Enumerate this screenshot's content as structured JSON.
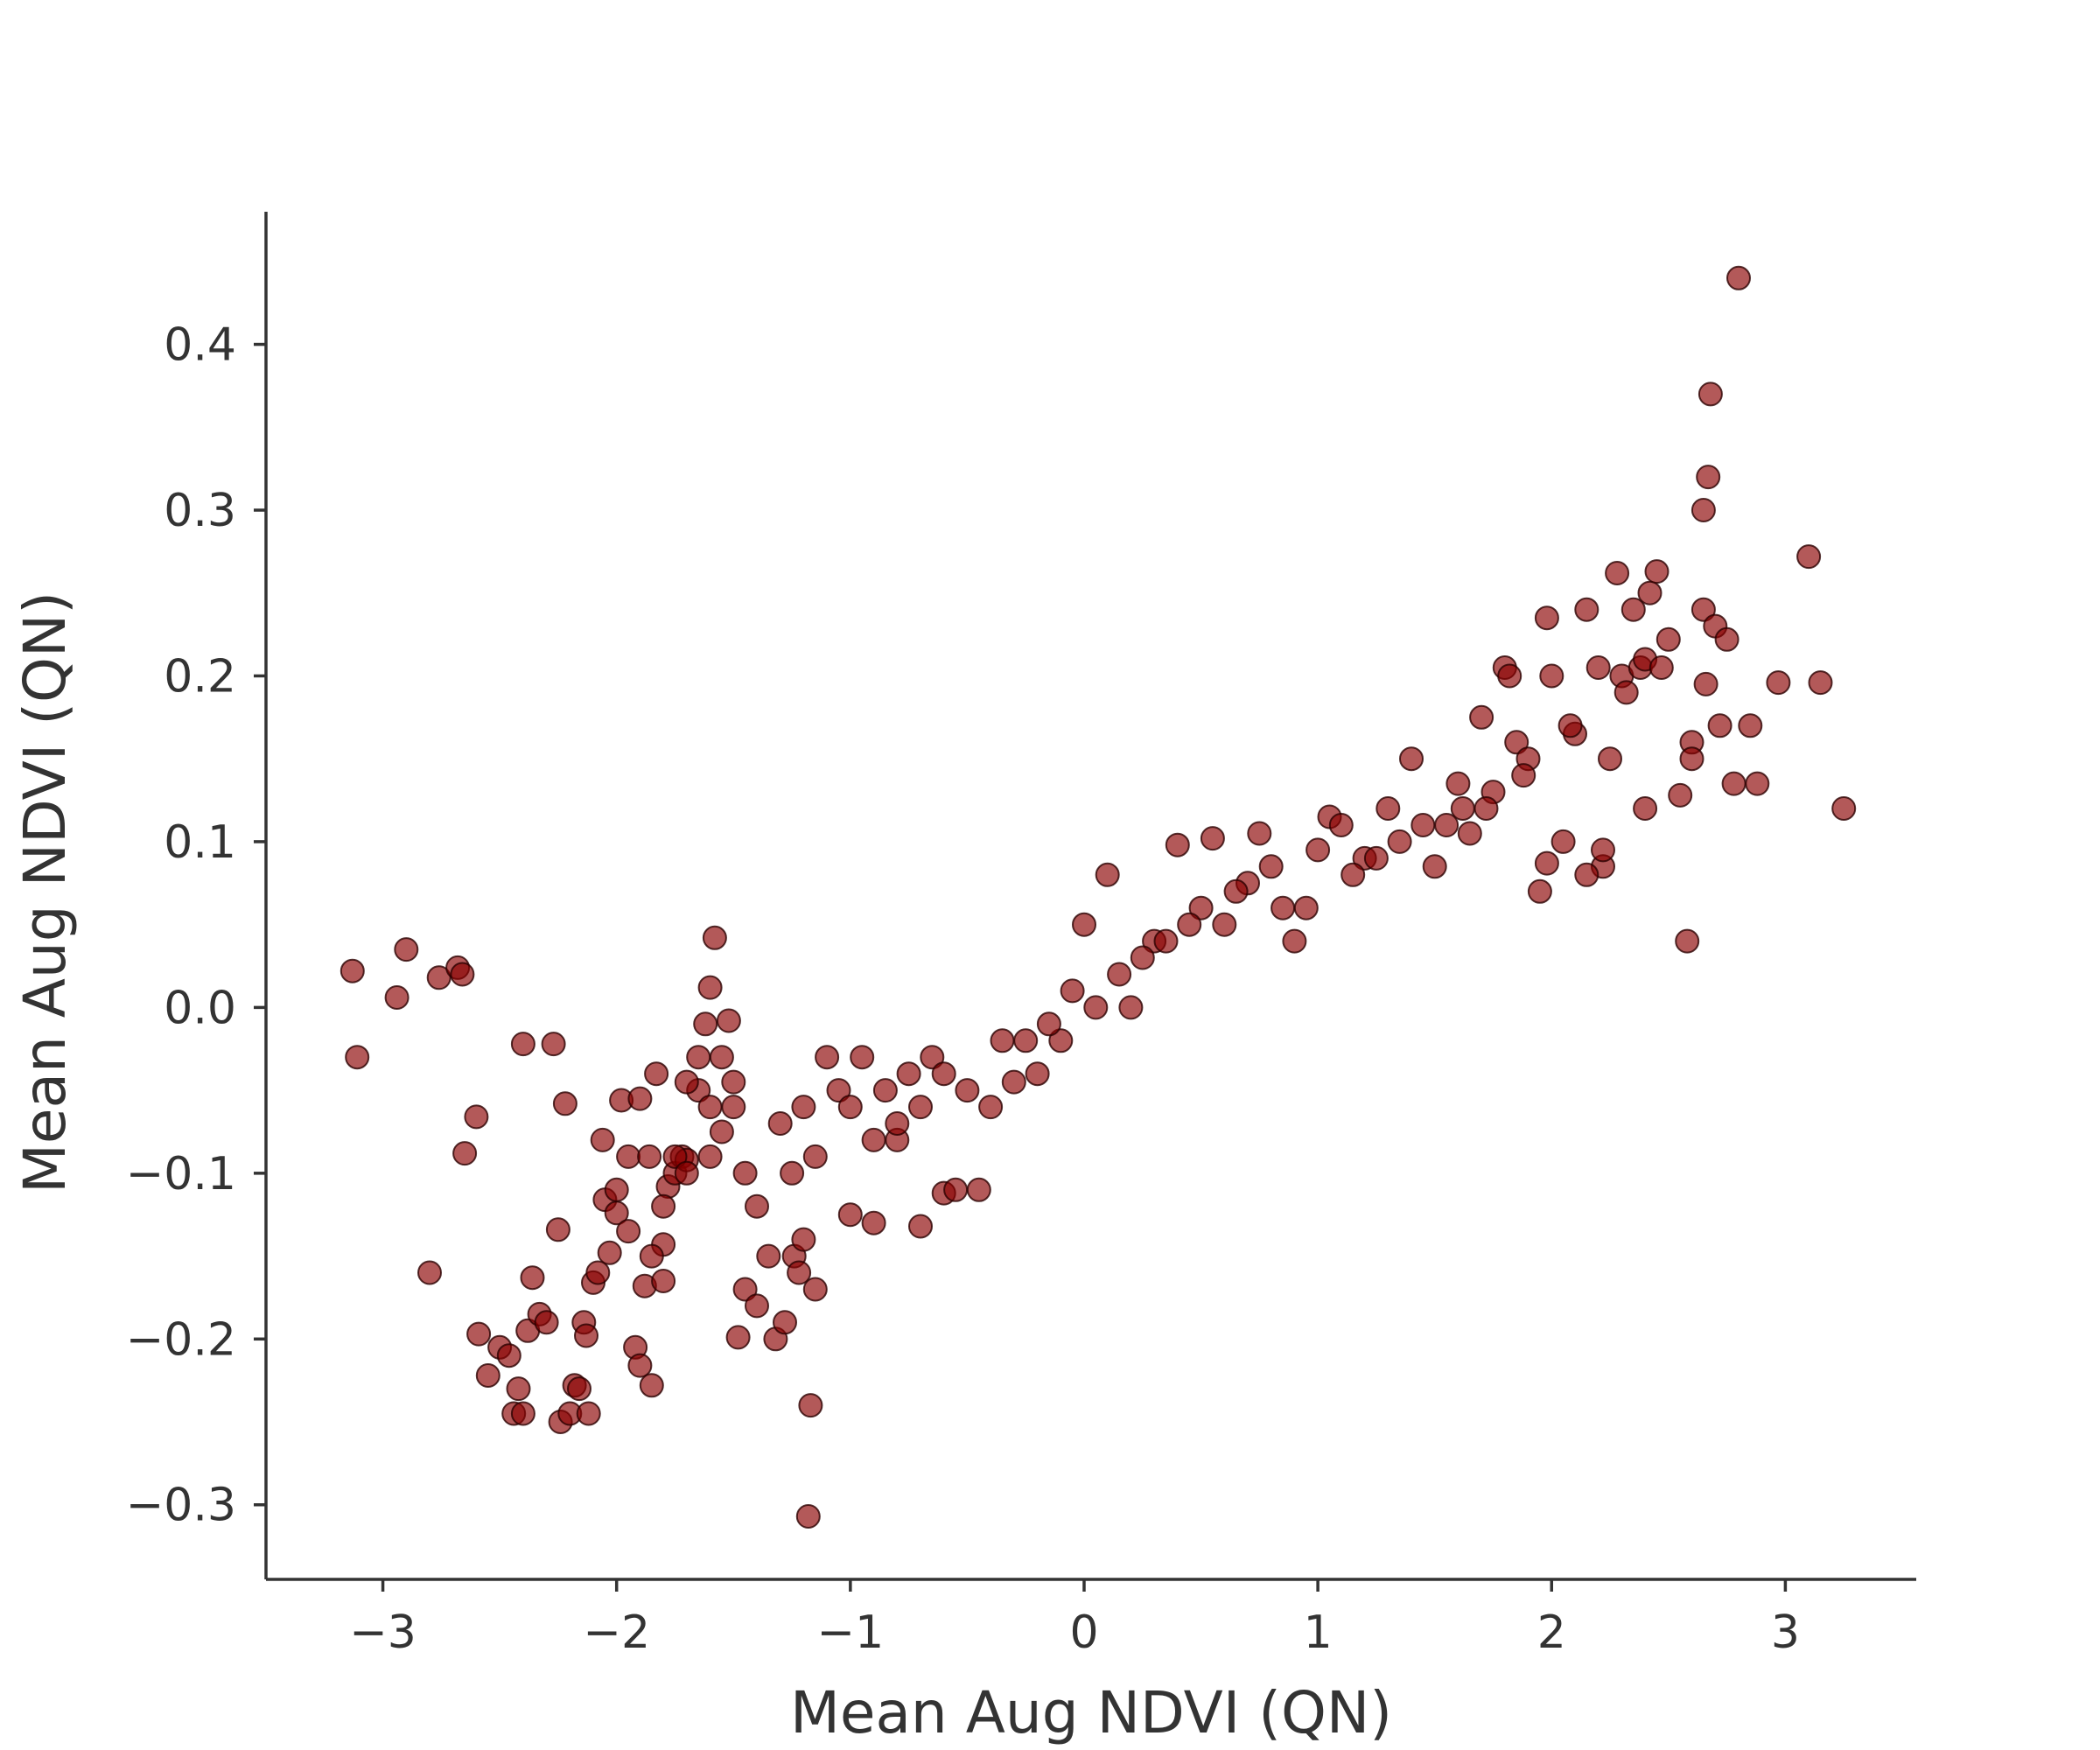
{
  "chart_data": {
    "type": "scatter",
    "title": "",
    "xlabel": "Mean Aug NDVI (QN)",
    "ylabel": "Mean Aug NDVI (QN)",
    "xlim": [
      -3.5,
      3.56
    ],
    "ylim": [
      -0.345,
      0.48
    ],
    "xticks": [
      -3,
      -2,
      -1,
      0,
      1,
      2,
      3
    ],
    "xtick_labels": [
      "−3",
      "−2",
      "−1",
      "0",
      "1",
      "2",
      "3"
    ],
    "yticks": [
      -0.3,
      -0.2,
      -0.1,
      0.0,
      0.1,
      0.2,
      0.3,
      0.4
    ],
    "ytick_labels": [
      "−0.3",
      "−0.2",
      "−0.1",
      "0.0",
      "0.1",
      "0.2",
      "0.3",
      "0.4"
    ],
    "grid": false,
    "legend": "none",
    "marker_color": "#8b0000",
    "marker_edge_color": "#2b0000",
    "marker_alpha": 0.65,
    "series": [
      {
        "x": [
          -3.13,
          -3.11,
          -2.94,
          -2.9,
          -2.8,
          -2.76,
          -2.68,
          -2.66,
          -2.65,
          -2.6,
          -2.59,
          -2.55,
          -2.5,
          -2.46,
          -2.44,
          -2.42,
          -2.4,
          -2.4,
          -2.38,
          -2.36,
          -2.33,
          -2.3,
          -2.27,
          -2.25,
          -2.24,
          -2.22,
          -2.2,
          -2.18,
          -2.16,
          -2.14,
          -2.13,
          -2.12,
          -2.1,
          -2.08,
          -2.06,
          -2.05,
          -2.03,
          -2.0,
          -1.98,
          -1.95,
          -1.92,
          -1.9,
          -1.88,
          -1.86,
          -1.85,
          -1.83,
          -1.8,
          -1.78,
          -1.75,
          -1.72,
          -1.7,
          -1.65,
          -1.62,
          -1.6,
          -1.58,
          -1.55,
          -1.52,
          -1.5,
          -1.48,
          -1.45,
          -1.4,
          -1.32,
          -1.28,
          -1.24,
          -1.22,
          -1.2,
          -1.17,
          -1.18,
          -1.15,
          -1.0,
          -0.9,
          -0.8,
          -0.7,
          -0.6,
          -0.55,
          -0.45,
          -0.4,
          -0.3,
          -0.2,
          -0.1,
          0.0,
          0.1,
          0.2,
          0.3,
          0.4,
          0.5,
          0.55,
          0.7,
          0.75,
          0.8,
          0.9,
          1.0,
          1.05,
          1.1,
          1.2,
          1.3,
          1.4,
          1.5,
          1.55,
          1.6,
          1.65,
          1.7,
          1.75,
          1.8,
          1.82,
          1.85,
          1.9,
          1.95,
          1.98,
          2.0,
          2.05,
          2.1,
          2.15,
          2.2,
          2.22,
          2.25,
          2.28,
          2.3,
          2.32,
          2.35,
          2.38,
          2.4,
          2.42,
          2.45,
          2.47,
          2.5,
          2.55,
          2.58,
          2.6,
          2.65,
          2.65,
          2.66,
          2.67,
          2.68,
          2.7,
          2.72,
          2.75,
          2.78,
          2.8,
          2.85,
          2.88,
          2.97,
          3.1,
          3.15,
          3.25,
          2.6,
          2.4,
          2.22,
          2.15,
          1.98,
          -1.6,
          -1.65,
          -1.7,
          -1.75,
          -1.8,
          -1.55,
          -1.9,
          -1.95,
          -2.0,
          -1.85,
          -1.8,
          -1.7,
          -1.6,
          -1.5,
          -1.45,
          -1.4,
          -1.35,
          -1.3,
          -1.25,
          -1.2,
          -1.15,
          -1.1,
          -1.05,
          -1.0,
          -0.95,
          -0.9,
          -0.85,
          -0.8,
          -0.75,
          -0.7,
          -0.65,
          -0.6,
          -0.5,
          -0.35,
          -0.25,
          -0.15,
          -0.05,
          0.05,
          0.15,
          0.25,
          0.35,
          0.45,
          0.6,
          0.65,
          0.85,
          0.95,
          1.15,
          1.25,
          1.35,
          1.45,
          1.62,
          1.72,
          1.88,
          2.08
        ],
        "y": [
          0.022,
          -0.03,
          0.006,
          0.035,
          -0.16,
          0.018,
          0.024,
          0.02,
          -0.088,
          -0.066,
          -0.197,
          -0.222,
          -0.205,
          -0.21,
          -0.245,
          -0.23,
          -0.022,
          -0.245,
          -0.195,
          -0.163,
          -0.185,
          -0.19,
          -0.022,
          -0.134,
          -0.25,
          -0.058,
          -0.245,
          -0.228,
          -0.23,
          -0.19,
          -0.198,
          -0.245,
          -0.166,
          -0.16,
          -0.08,
          -0.116,
          -0.148,
          -0.124,
          -0.056,
          -0.09,
          -0.205,
          -0.216,
          -0.168,
          -0.09,
          -0.228,
          -0.04,
          -0.143,
          -0.108,
          -0.1,
          -0.09,
          -0.092,
          -0.05,
          -0.01,
          -0.09,
          0.042,
          -0.03,
          -0.008,
          -0.06,
          -0.199,
          -0.17,
          -0.18,
          -0.2,
          -0.19,
          -0.15,
          -0.16,
          -0.14,
          -0.24,
          -0.307,
          -0.17,
          -0.125,
          -0.13,
          -0.08,
          -0.132,
          -0.112,
          -0.11,
          -0.11,
          -0.06,
          -0.045,
          -0.04,
          -0.02,
          0.05,
          0.08,
          0.0,
          0.04,
          0.098,
          0.06,
          0.102,
          0.075,
          0.105,
          0.085,
          0.04,
          0.095,
          0.115,
          0.11,
          0.09,
          0.12,
          0.15,
          0.085,
          0.11,
          0.135,
          0.105,
          0.175,
          0.13,
          0.205,
          0.2,
          0.16,
          0.15,
          0.07,
          0.235,
          0.2,
          0.1,
          0.165,
          0.24,
          0.205,
          0.085,
          0.15,
          0.262,
          0.2,
          0.19,
          0.24,
          0.205,
          0.21,
          0.25,
          0.263,
          0.205,
          0.222,
          0.128,
          0.04,
          0.16,
          0.3,
          0.24,
          0.195,
          0.32,
          0.37,
          0.23,
          0.17,
          0.222,
          0.135,
          0.44,
          0.17,
          0.135,
          0.196,
          0.272,
          0.196,
          0.12,
          0.15,
          0.12,
          0.095,
          0.08,
          0.087,
          0.012,
          -0.03,
          -0.045,
          -0.09,
          -0.165,
          -0.075,
          -0.055,
          -0.135,
          -0.11,
          -0.15,
          -0.12,
          -0.1,
          -0.06,
          -0.045,
          -0.1,
          -0.12,
          -0.15,
          -0.07,
          -0.1,
          -0.06,
          -0.09,
          -0.03,
          -0.05,
          -0.06,
          -0.03,
          -0.08,
          -0.05,
          -0.07,
          -0.04,
          -0.06,
          -0.03,
          -0.04,
          -0.05,
          -0.02,
          -0.02,
          -0.01,
          0.01,
          0.0,
          0.02,
          0.03,
          0.04,
          0.05,
          0.05,
          0.07,
          0.06,
          0.06,
          0.08,
          0.09,
          0.1,
          0.11,
          0.12,
          0.12,
          0.14,
          0.17
        ]
      }
    ]
  }
}
